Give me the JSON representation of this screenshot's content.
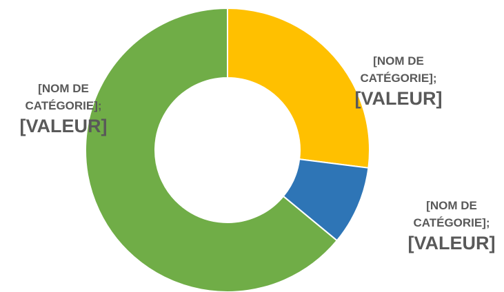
{
  "chart_data": {
    "type": "donut",
    "categories": [
      "[NOM DE CATÉGORIE];",
      "[NOM DE CATÉGORIE];",
      "[NOM DE CATÉGORIE];"
    ],
    "values": [
      27,
      9,
      64
    ],
    "value_labels": [
      "[VALEUR]",
      "[VALEUR]",
      "[VALEUR]"
    ],
    "colors": [
      "#FFC000",
      "#2E75B6",
      "#70AD47"
    ]
  }
}
